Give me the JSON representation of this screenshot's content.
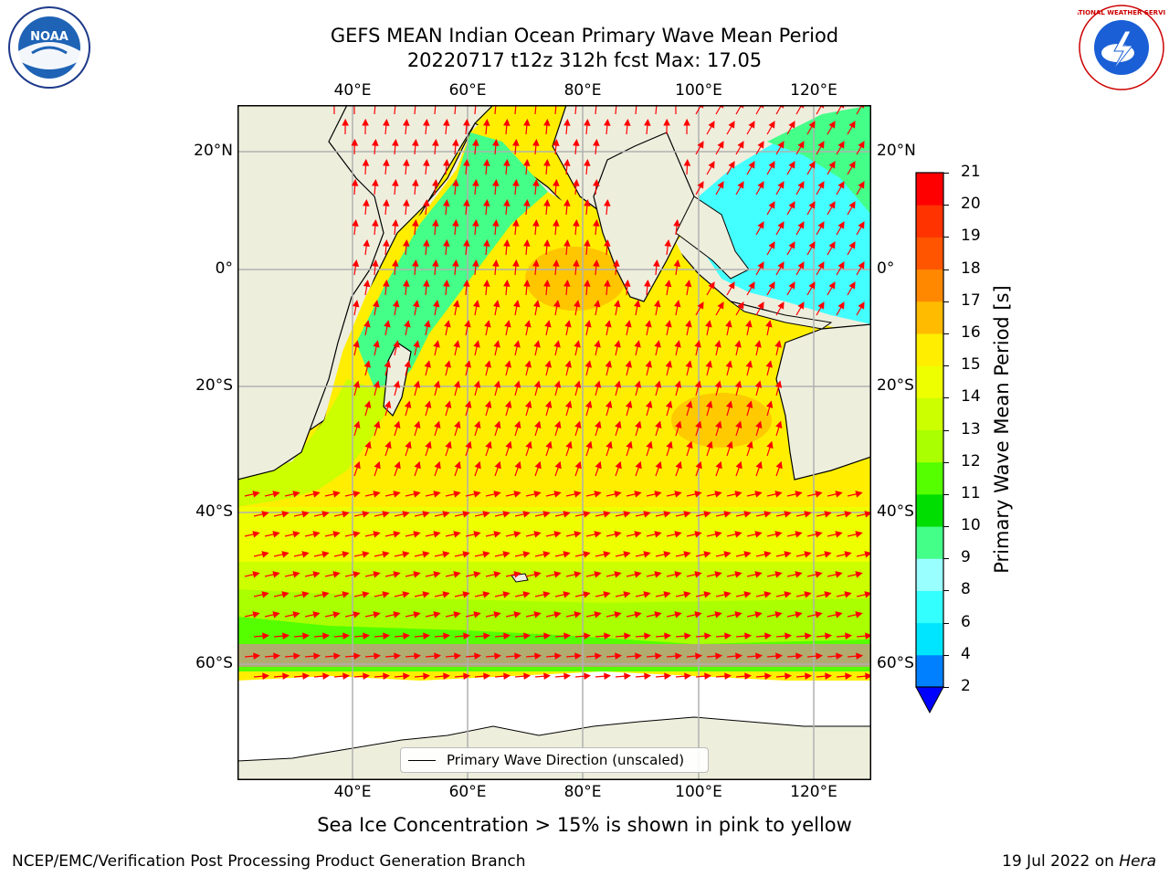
{
  "title": {
    "line1": "GEFS MEAN Indian Ocean Primary Wave Mean Period",
    "line2": "20220717 t12z 312h fcst   Max: 17.05"
  },
  "map": {
    "lon_ticks": [
      "40°E",
      "60°E",
      "80°E",
      "100°E",
      "120°E"
    ],
    "lat_ticks": [
      "20°N",
      "0°",
      "20°S",
      "40°S",
      "60°S"
    ],
    "lon_range": [
      20,
      130
    ],
    "lat_range": [
      -75,
      28
    ],
    "land_color": "#eeeedd",
    "arrow_color": "#ff0000",
    "legend_label": "Primary Wave Direction (unscaled)"
  },
  "colorbar": {
    "label": "Primary Wave Mean Period [s]",
    "ticks": [
      "2",
      "4",
      "6",
      "8",
      "9",
      "10",
      "11",
      "12",
      "13",
      "14",
      "15",
      "16",
      "17",
      "18",
      "19",
      "20",
      "21"
    ],
    "colors": [
      "#0080ff",
      "#00e5ff",
      "#33ffff",
      "#99ffff",
      "#44ff88",
      "#00dd00",
      "#55ff00",
      "#aaff00",
      "#ccff00",
      "#eeff00",
      "#ffee00",
      "#ffbb00",
      "#ff8800",
      "#ff5500",
      "#ff3300",
      "#ff0000"
    ],
    "extend_color": "#0000ff"
  },
  "footer": {
    "note": "Sea Ice Concentration > 15% is shown in pink to yellow",
    "credit": "NCEP/EMC/Verification Post Processing Product Generation Branch",
    "date_prefix": "19 Jul 2022 on ",
    "date_machine": "Hera"
  },
  "logos": {
    "noaa_text": "NOAA",
    "nws_text": "NATIONAL WEATHER SERVICE"
  }
}
